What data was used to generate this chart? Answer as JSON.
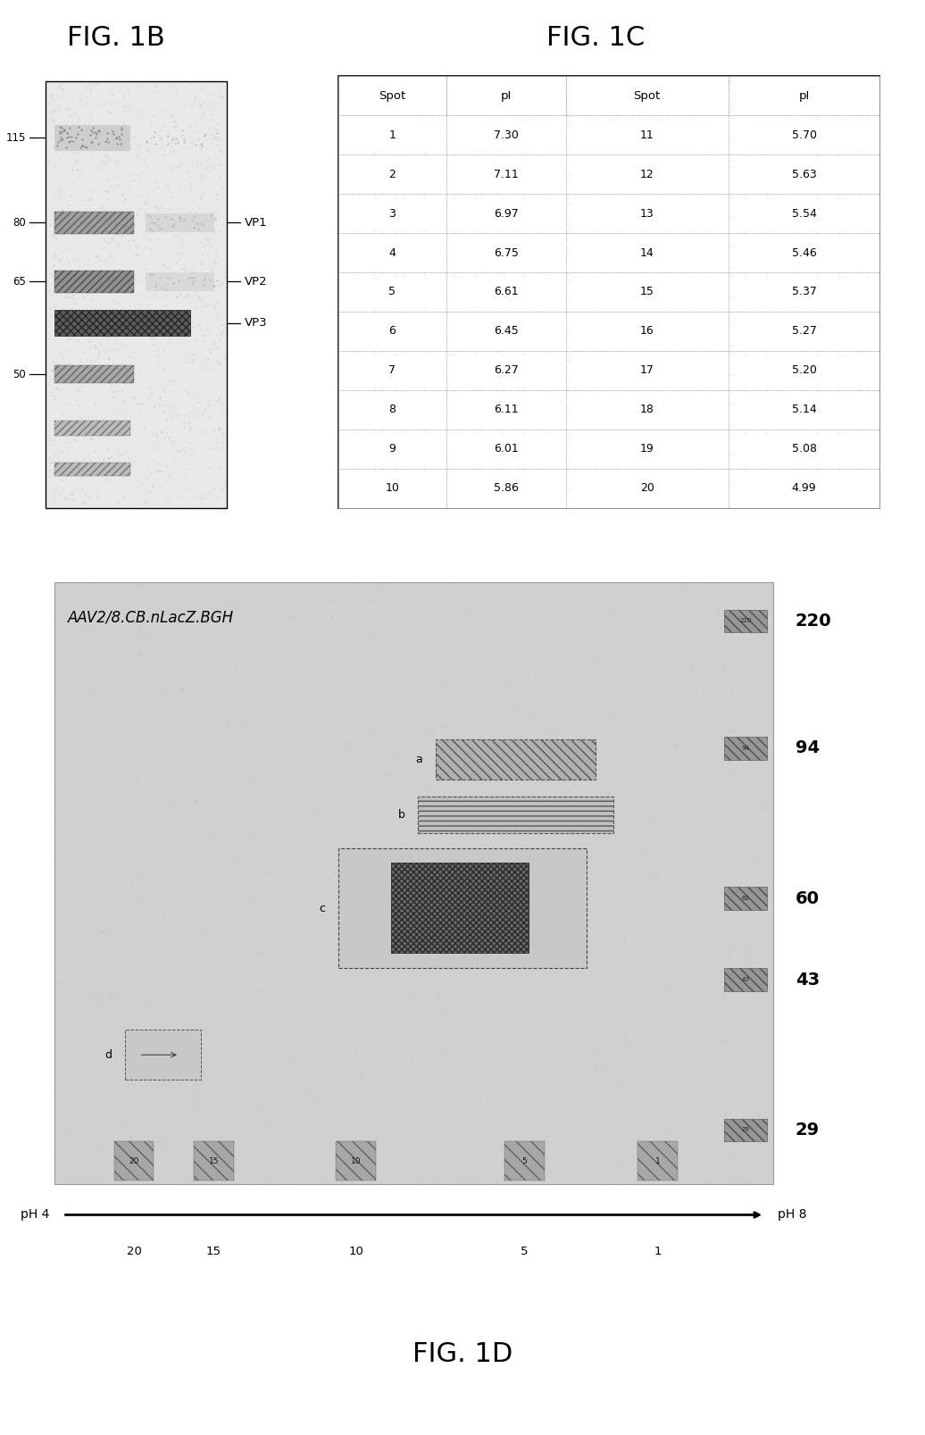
{
  "fig1b_title": "FIG. 1B",
  "fig1c_title": "FIG. 1C",
  "fig1d_title": "FIG. 1D",
  "gel_labels_left": [
    "115",
    "80",
    "65",
    "50"
  ],
  "gel_labels_right": [
    "VP1",
    "VP2",
    "VP3"
  ],
  "table_headers": [
    "Spot",
    "pI",
    "Spot",
    "pI"
  ],
  "table_data": [
    [
      "1",
      "7.30",
      "11",
      "5.70"
    ],
    [
      "2",
      "7.11",
      "12",
      "5.63"
    ],
    [
      "3",
      "6.97",
      "13",
      "5.54"
    ],
    [
      "4",
      "6.75",
      "14",
      "5.46"
    ],
    [
      "5",
      "6.61",
      "15",
      "5.37"
    ],
    [
      "6",
      "6.45",
      "16",
      "5.27"
    ],
    [
      "7",
      "6.27",
      "17",
      "5.20"
    ],
    [
      "8",
      "6.11",
      "18",
      "5.14"
    ],
    [
      "9",
      "6.01",
      "19",
      "5.08"
    ],
    [
      "10",
      "5.86",
      "20",
      "4.99"
    ]
  ],
  "gel2d_label": "AAV2/8.CB.nLacZ.BGH",
  "gel2d_markers": [
    "220",
    "94",
    "60",
    "43",
    "29"
  ],
  "gel2d_ph_labels": [
    "20",
    "15",
    "10",
    "5",
    "1"
  ],
  "gel2d_ph_axis_left": "pH 4",
  "gel2d_ph_axis_right": "pH 8",
  "title_font_size": 22
}
